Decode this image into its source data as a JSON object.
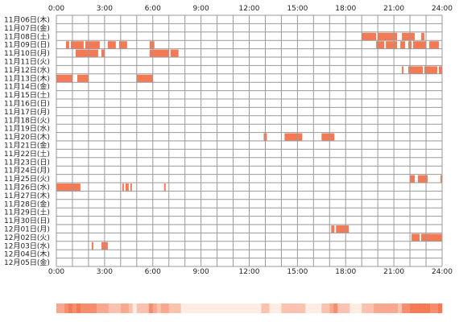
{
  "chart_data": {
    "type": "heatmap",
    "title": "",
    "xlabel": "",
    "ylabel": "",
    "x_ticks": [
      "0:00",
      "3:00",
      "6:00",
      "9:00",
      "12:00",
      "15:00",
      "18:00",
      "21:00",
      "24:00"
    ],
    "x_range_hours": [
      0,
      24
    ],
    "grid": true,
    "bar_color": "#f47a55",
    "summary_strip_colors": {
      "light": "#ffeee6",
      "dark": "#f47a55"
    },
    "rows": [
      {
        "date": "11月06日(木)",
        "intervals": []
      },
      {
        "date": "11月07日(金)",
        "intervals": []
      },
      {
        "date": "11月08日(土)",
        "intervals": [
          [
            19.0,
            19.9
          ],
          [
            20.0,
            21.2
          ],
          [
            21.5,
            22.3
          ],
          [
            22.7,
            22.9
          ]
        ]
      },
      {
        "date": "11月09日(日)",
        "intervals": [
          [
            0.6,
            0.8
          ],
          [
            0.9,
            1.7
          ],
          [
            1.8,
            2.7
          ],
          [
            3.2,
            3.7
          ],
          [
            3.9,
            4.4
          ],
          [
            5.8,
            6.1
          ],
          [
            19.9,
            20.4
          ],
          [
            20.5,
            21.2
          ],
          [
            21.4,
            21.7
          ],
          [
            21.9,
            22.1
          ],
          [
            22.2,
            23.0
          ],
          [
            23.2,
            23.8
          ]
        ]
      },
      {
        "date": "11月10日(月)",
        "intervals": [
          [
            1.2,
            2.6
          ],
          [
            2.8,
            3.0
          ],
          [
            5.8,
            7.0
          ],
          [
            7.1,
            7.6
          ]
        ]
      },
      {
        "date": "11月11日(火)",
        "intervals": []
      },
      {
        "date": "11月12日(水)",
        "intervals": [
          [
            21.5,
            21.6
          ],
          [
            21.9,
            22.8
          ],
          [
            22.9,
            23.7
          ],
          [
            23.8,
            24.0
          ]
        ]
      },
      {
        "date": "11月13日(木)",
        "intervals": [
          [
            0.0,
            1.0
          ],
          [
            1.3,
            2.0
          ],
          [
            5.0,
            6.0
          ]
        ]
      },
      {
        "date": "11月14日(金)",
        "intervals": []
      },
      {
        "date": "11月15日(土)",
        "intervals": []
      },
      {
        "date": "11月16日(日)",
        "intervals": []
      },
      {
        "date": "11月17日(月)",
        "intervals": []
      },
      {
        "date": "11月18日(火)",
        "intervals": []
      },
      {
        "date": "11月19日(水)",
        "intervals": []
      },
      {
        "date": "11月20日(木)",
        "intervals": [
          [
            12.9,
            13.1
          ],
          [
            14.2,
            15.3
          ],
          [
            16.5,
            17.3
          ]
        ]
      },
      {
        "date": "11月21日(金)",
        "intervals": []
      },
      {
        "date": "11月22日(土)",
        "intervals": []
      },
      {
        "date": "11月23日(日)",
        "intervals": []
      },
      {
        "date": "11月24日(月)",
        "intervals": []
      },
      {
        "date": "11月25日(火)",
        "intervals": [
          [
            22.0,
            22.3
          ],
          [
            22.5,
            23.1
          ],
          [
            23.9,
            24.0
          ]
        ]
      },
      {
        "date": "11月26日(水)",
        "intervals": [
          [
            0.0,
            1.5
          ],
          [
            4.1,
            4.2
          ],
          [
            4.3,
            4.5
          ],
          [
            4.6,
            4.7
          ],
          [
            6.7,
            6.8
          ]
        ]
      },
      {
        "date": "11月27日(木)",
        "intervals": []
      },
      {
        "date": "11月28日(金)",
        "intervals": []
      },
      {
        "date": "11月29日(土)",
        "intervals": []
      },
      {
        "date": "11月30日(日)",
        "intervals": []
      },
      {
        "date": "12月01日(月)",
        "intervals": [
          [
            17.1,
            17.3
          ],
          [
            17.4,
            18.2
          ]
        ]
      },
      {
        "date": "12月02日(火)",
        "intervals": [
          [
            22.1,
            22.6
          ],
          [
            22.7,
            24.0
          ]
        ]
      },
      {
        "date": "12月03日(水)",
        "intervals": [
          [
            2.2,
            2.3
          ],
          [
            2.8,
            3.2
          ]
        ]
      },
      {
        "date": "12月04日(木)",
        "intervals": []
      },
      {
        "date": "12月05日(金)",
        "intervals": []
      }
    ]
  }
}
